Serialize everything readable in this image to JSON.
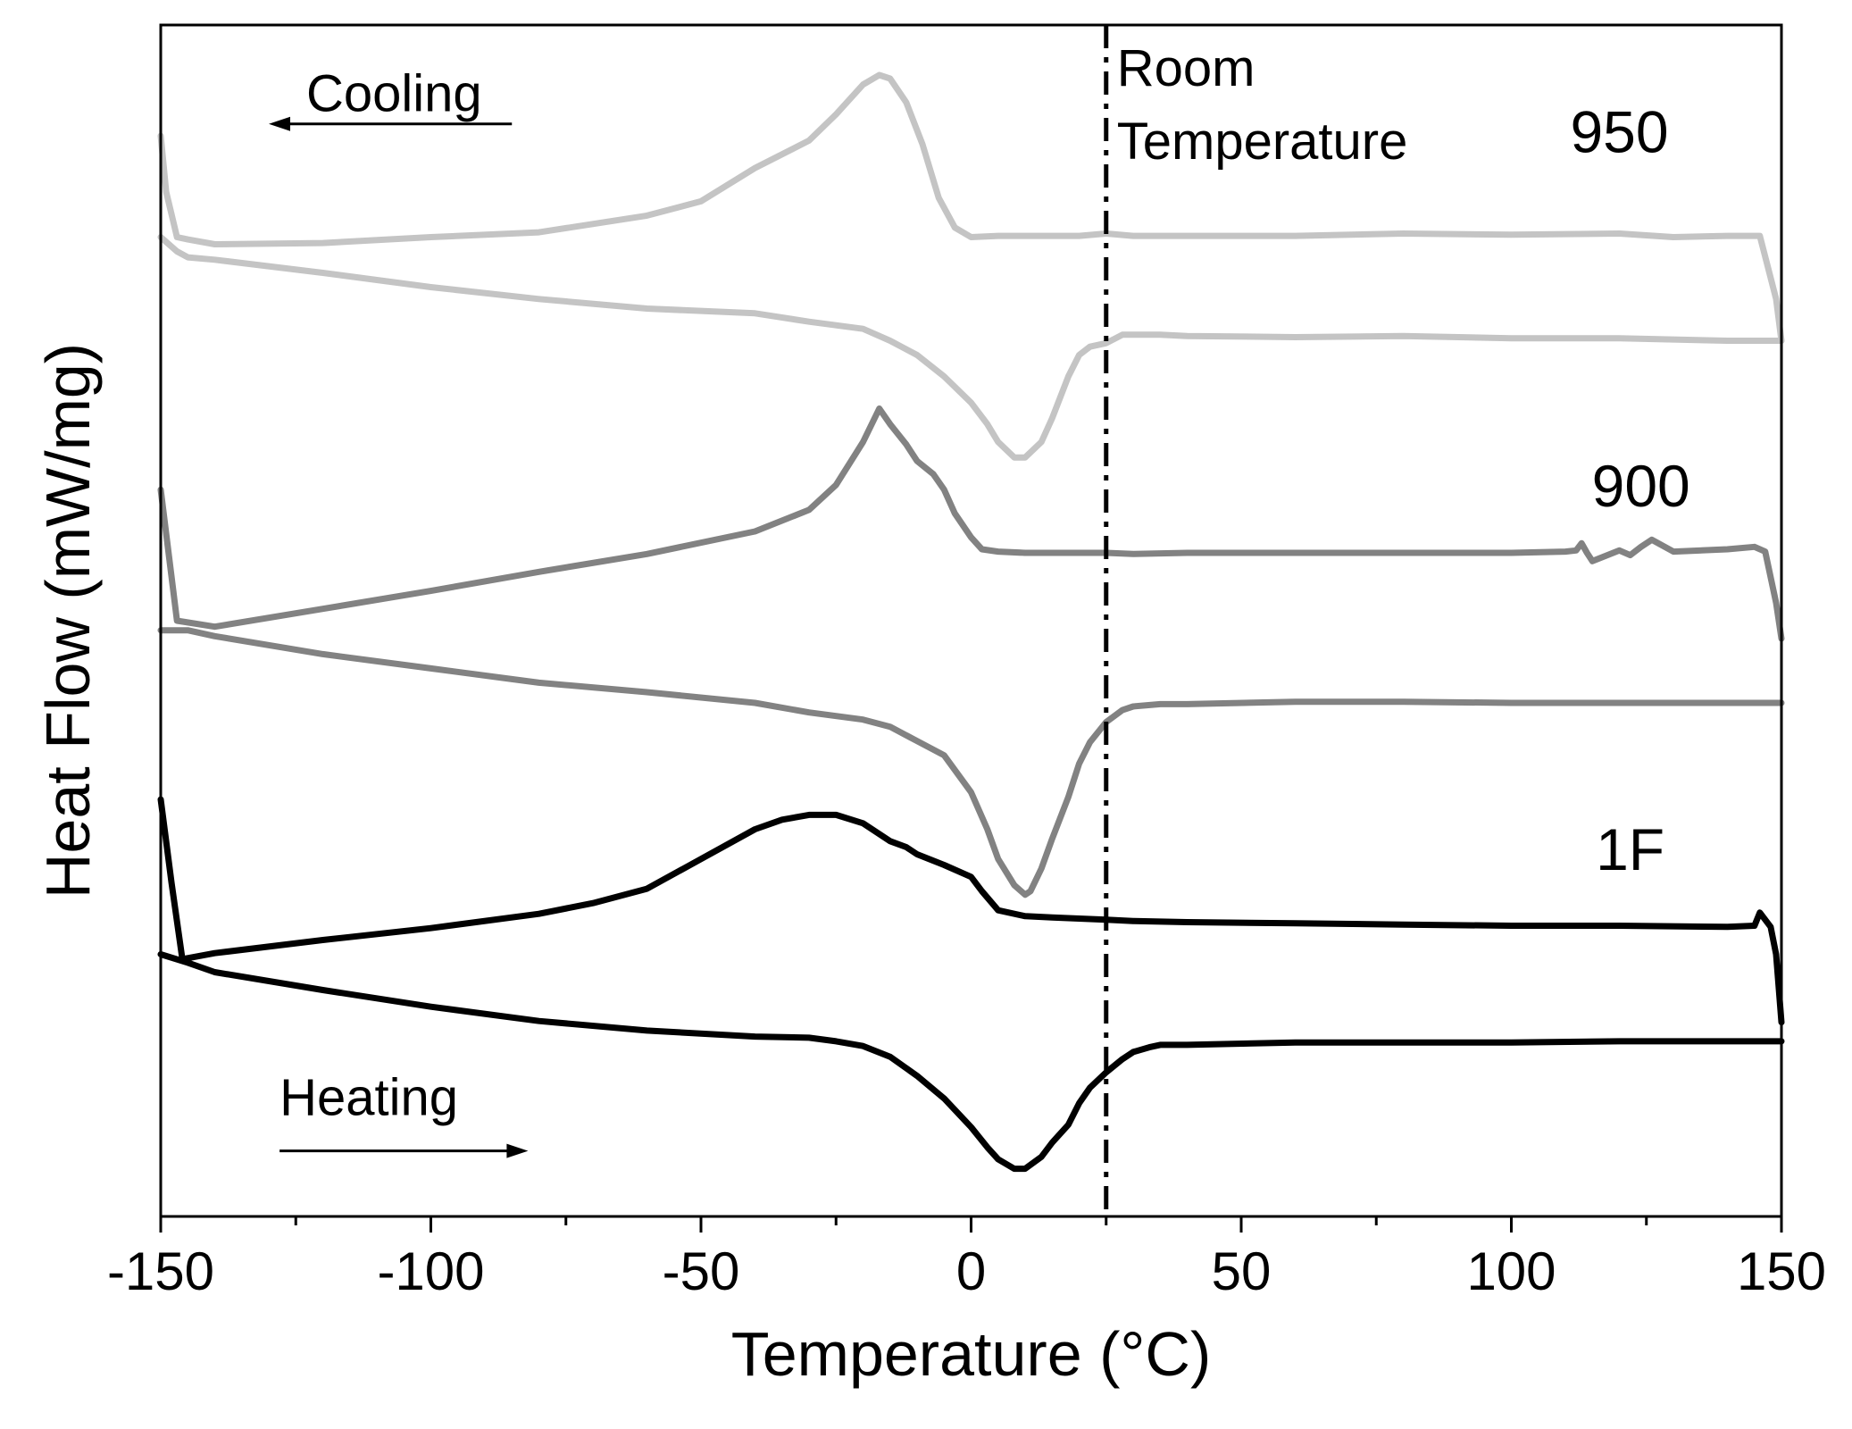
{
  "chart_data": {
    "type": "line",
    "title": "",
    "xlabel": "Temperature (°C)",
    "ylabel": "Heat Flow (mW/mg)",
    "xlim": [
      -150,
      150
    ],
    "ylim": [
      0,
      100
    ],
    "yticks_shown": false,
    "grid": false,
    "x_ticks": [
      -150,
      -100,
      -50,
      0,
      50,
      100,
      150
    ],
    "x_tick_labels": [
      "-150",
      "-100",
      "-50",
      "0",
      "50",
      "100",
      "150"
    ],
    "reference_line": {
      "x": 25,
      "label_line1": "Room",
      "label_line2": "Temperature",
      "style": "dash-dot"
    },
    "annotations": [
      {
        "text": "Cooling",
        "direction": "left",
        "x_from": -85,
        "x_to": -130,
        "y": 91.7
      },
      {
        "text": "Heating",
        "direction": "right",
        "x_from": -128,
        "x_to": -82,
        "y": 5.5
      }
    ],
    "series": [
      {
        "name": "950",
        "color": "#c4c4c4",
        "label_pos": {
          "x": 120,
          "y": 89.3
        },
        "cooling": {
          "x": [
            150,
            149,
            146,
            140,
            130,
            120,
            100,
            80,
            60,
            40,
            30,
            25,
            20,
            15,
            10,
            5,
            0,
            -3,
            -6,
            -9,
            -12,
            -15,
            -17,
            -20,
            -25,
            -30,
            -40,
            -50,
            -60,
            -80,
            -100,
            -120,
            -140,
            -145,
            -147,
            -149,
            -150
          ],
          "y": [
            73.5,
            77,
            82.3,
            82.3,
            82.2,
            82.5,
            82.4,
            82.5,
            82.3,
            82.3,
            82.3,
            82.5,
            82.3,
            82.3,
            82.3,
            82.3,
            82.2,
            83,
            85.5,
            90,
            93.5,
            95.5,
            95.8,
            95,
            92.5,
            90.3,
            88,
            85.2,
            84,
            82.6,
            82.2,
            81.7,
            81.6,
            82,
            82.2,
            86,
            90.7
          ]
        },
        "heating": {
          "x": [
            -150,
            -147,
            -145,
            -140,
            -120,
            -100,
            -80,
            -60,
            -40,
            -30,
            -20,
            -15,
            -10,
            -5,
            0,
            3,
            5,
            8,
            10,
            13,
            15,
            18,
            20,
            22,
            25,
            28,
            30,
            35,
            40,
            60,
            80,
            100,
            120,
            140,
            150
          ],
          "y": [
            82.2,
            81,
            80.5,
            80.3,
            79.2,
            78,
            77,
            76.2,
            75.8,
            75.1,
            74.5,
            73.5,
            72.3,
            70.5,
            68.3,
            66.5,
            65,
            63.7,
            63.7,
            65,
            67,
            70.5,
            72.3,
            73,
            73.3,
            74,
            74,
            74,
            73.9,
            73.8,
            73.9,
            73.7,
            73.7,
            73.5,
            73.5
          ]
        }
      },
      {
        "name": "900",
        "color": "#828282",
        "label_pos": {
          "x": 124,
          "y": 59.6
        },
        "cooling": {
          "x": [
            150,
            149,
            147,
            145,
            140,
            130,
            126,
            124,
            122,
            120,
            115,
            114,
            113,
            112,
            110,
            100,
            80,
            60,
            40,
            30,
            25,
            20,
            10,
            5,
            2,
            0,
            -3,
            -5,
            -7,
            -10,
            -12,
            -15,
            -17,
            -20,
            -25,
            -30,
            -40,
            -60,
            -80,
            -100,
            -120,
            -140,
            -147,
            -150
          ],
          "y": [
            48.5,
            51.5,
            55.8,
            56.2,
            56,
            55.8,
            56.8,
            56.2,
            55.5,
            55.9,
            55,
            55.7,
            56.5,
            55.9,
            55.8,
            55.7,
            55.7,
            55.7,
            55.7,
            55.6,
            55.7,
            55.7,
            55.7,
            55.8,
            56,
            57,
            59,
            61,
            62.3,
            63.4,
            64.8,
            66.5,
            67.8,
            65,
            61.4,
            59.3,
            57.5,
            55.6,
            54.1,
            52.5,
            51,
            49.5,
            50,
            61
          ]
        },
        "heating": {
          "x": [
            -150,
            -147,
            -145,
            -140,
            -120,
            -100,
            -80,
            -60,
            -40,
            -30,
            -20,
            -15,
            -10,
            -5,
            0,
            3,
            5,
            8,
            10,
            11,
            13,
            15,
            18,
            20,
            22,
            25,
            28,
            30,
            35,
            40,
            60,
            80,
            100,
            120,
            140,
            150
          ],
          "y": [
            49.2,
            49.2,
            49.2,
            48.7,
            47.2,
            46,
            44.8,
            44,
            43.1,
            42.3,
            41.7,
            41.1,
            39.9,
            38.7,
            35.6,
            32.5,
            30,
            27.8,
            27,
            27.3,
            29.2,
            31.7,
            35.2,
            38,
            39.8,
            41.5,
            42.5,
            42.8,
            43,
            43,
            43.2,
            43.2,
            43.1,
            43.1,
            43.1,
            43.1
          ]
        }
      },
      {
        "name": "1F",
        "color": "#000000",
        "label_pos": {
          "x": 122,
          "y": 29.1
        },
        "cooling": {
          "x": [
            150,
            149,
            148,
            146,
            145,
            140,
            120,
            100,
            80,
            60,
            40,
            30,
            25,
            20,
            15,
            10,
            5,
            2,
            0,
            -5,
            -10,
            -12,
            -15,
            -20,
            -25,
            -30,
            -35,
            -40,
            -50,
            -60,
            -70,
            -80,
            -100,
            -120,
            -140,
            -146,
            -148,
            -150
          ],
          "y": [
            16.3,
            22,
            24.3,
            25.5,
            24.4,
            24.3,
            24.4,
            24.4,
            24.5,
            24.6,
            24.7,
            24.8,
            24.9,
            25,
            25.1,
            25.2,
            25.7,
            27.3,
            28.5,
            29.5,
            30.4,
            31,
            31.5,
            33,
            33.7,
            33.7,
            33.3,
            32.5,
            30,
            27.5,
            26.3,
            25.4,
            24.2,
            23.2,
            22.1,
            21.6,
            28,
            35
          ]
        },
        "heating": {
          "x": [
            -150,
            -145,
            -140,
            -120,
            -100,
            -80,
            -60,
            -40,
            -30,
            -25,
            -20,
            -15,
            -10,
            -5,
            0,
            3,
            5,
            8,
            10,
            13,
            15,
            18,
            20,
            22,
            25,
            28,
            30,
            33,
            35,
            40,
            60,
            80,
            100,
            120,
            140,
            150
          ],
          "y": [
            22,
            21.3,
            20.5,
            19,
            17.6,
            16.4,
            15.6,
            15.1,
            15,
            14.7,
            14.3,
            13.4,
            11.8,
            9.9,
            7.5,
            5.8,
            4.8,
            4,
            4,
            5,
            6.2,
            7.7,
            9.5,
            10.8,
            12.1,
            13.2,
            13.8,
            14.2,
            14.4,
            14.4,
            14.6,
            14.6,
            14.6,
            14.7,
            14.7,
            14.7
          ]
        }
      }
    ]
  }
}
